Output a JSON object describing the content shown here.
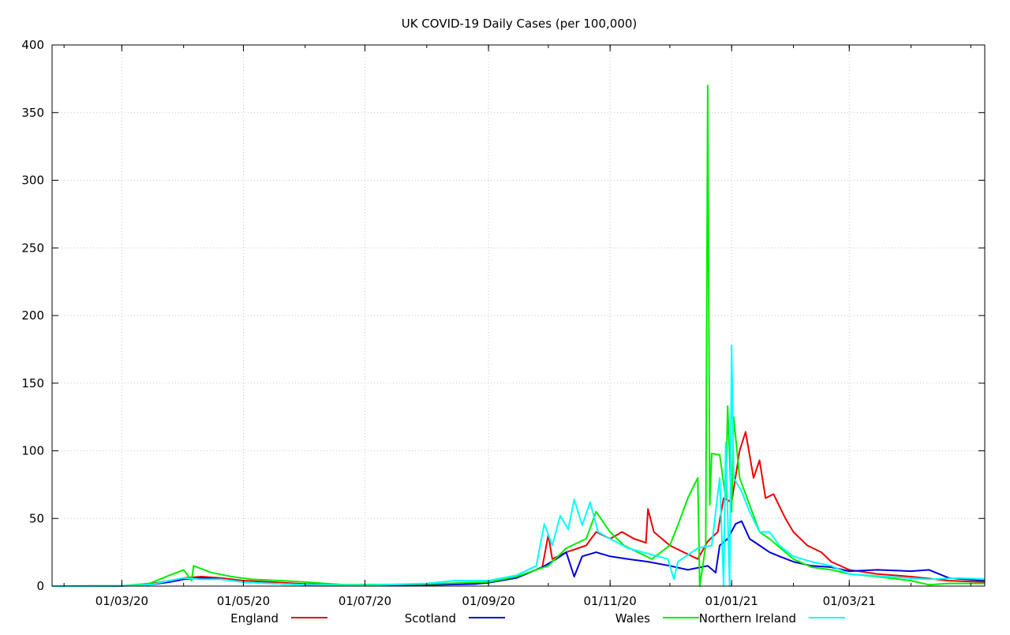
{
  "chart_data": {
    "type": "line",
    "title": "UK COVID-19 Daily Cases (per 100,000)",
    "xlabel": "",
    "ylabel": "",
    "x_date_range": [
      "2020-01-26",
      "2021-05-08"
    ],
    "ylim": [
      0,
      400
    ],
    "y_ticks": [
      0,
      50,
      100,
      150,
      200,
      250,
      300,
      350,
      400
    ],
    "x_ticks": [
      {
        "date": "2020-03-01",
        "label": "01/03/20"
      },
      {
        "date": "2020-05-01",
        "label": "01/05/20"
      },
      {
        "date": "2020-07-01",
        "label": "01/07/20"
      },
      {
        "date": "2020-09-01",
        "label": "01/09/20"
      },
      {
        "date": "2020-11-01",
        "label": "01/11/20"
      },
      {
        "date": "2021-01-01",
        "label": "01/01/21"
      },
      {
        "date": "2021-03-01",
        "label": "01/03/21"
      }
    ],
    "grid": true,
    "legend_position": "bottom",
    "series": [
      {
        "name": "England",
        "color": "#ee0000",
        "points": [
          [
            "2020-01-26",
            0
          ],
          [
            "2020-03-01",
            0.1
          ],
          [
            "2020-03-15",
            1.5
          ],
          [
            "2020-03-25",
            4
          ],
          [
            "2020-04-01",
            6
          ],
          [
            "2020-04-10",
            7
          ],
          [
            "2020-04-20",
            6
          ],
          [
            "2020-05-01",
            4
          ],
          [
            "2020-05-15",
            3
          ],
          [
            "2020-06-01",
            1.5
          ],
          [
            "2020-07-01",
            0.5
          ],
          [
            "2020-08-01",
            1
          ],
          [
            "2020-09-01",
            2.5
          ],
          [
            "2020-09-10",
            5
          ],
          [
            "2020-09-20",
            9
          ],
          [
            "2020-09-28",
            14
          ],
          [
            "2020-10-01",
            38
          ],
          [
            "2020-10-03",
            20
          ],
          [
            "2020-10-10",
            25
          ],
          [
            "2020-10-20",
            30
          ],
          [
            "2020-10-25",
            40
          ],
          [
            "2020-11-01",
            35
          ],
          [
            "2020-11-07",
            40
          ],
          [
            "2020-11-13",
            35
          ],
          [
            "2020-11-19",
            32
          ],
          [
            "2020-11-20",
            57
          ],
          [
            "2020-11-23",
            40
          ],
          [
            "2020-12-01",
            30
          ],
          [
            "2020-12-08",
            25
          ],
          [
            "2020-12-15",
            20
          ],
          [
            "2020-12-20",
            33
          ],
          [
            "2020-12-25",
            40
          ],
          [
            "2020-12-28",
            65
          ],
          [
            "2021-01-01",
            62
          ],
          [
            "2021-01-05",
            100
          ],
          [
            "2021-01-08",
            114
          ],
          [
            "2021-01-12",
            80
          ],
          [
            "2021-01-15",
            93
          ],
          [
            "2021-01-18",
            65
          ],
          [
            "2021-01-22",
            68
          ],
          [
            "2021-01-28",
            50
          ],
          [
            "2021-02-01",
            40
          ],
          [
            "2021-02-08",
            30
          ],
          [
            "2021-02-15",
            25
          ],
          [
            "2021-02-20",
            18
          ],
          [
            "2021-03-01",
            12
          ],
          [
            "2021-03-15",
            9
          ],
          [
            "2021-04-01",
            7
          ],
          [
            "2021-04-20",
            4
          ],
          [
            "2021-05-08",
            3
          ]
        ]
      },
      {
        "name": "Scotland",
        "color": "#0000dd",
        "points": [
          [
            "2020-01-26",
            0
          ],
          [
            "2020-03-01",
            0.1
          ],
          [
            "2020-03-15",
            1
          ],
          [
            "2020-03-25",
            3
          ],
          [
            "2020-04-01",
            5
          ],
          [
            "2020-04-10",
            6
          ],
          [
            "2020-04-20",
            5
          ],
          [
            "2020-05-01",
            3
          ],
          [
            "2020-05-15",
            2
          ],
          [
            "2020-06-01",
            1
          ],
          [
            "2020-07-01",
            0.3
          ],
          [
            "2020-08-01",
            0.8
          ],
          [
            "2020-08-25",
            1.5
          ],
          [
            "2020-09-01",
            2.5
          ],
          [
            "2020-09-15",
            6
          ],
          [
            "2020-09-28",
            14
          ],
          [
            "2020-10-05",
            20
          ],
          [
            "2020-10-10",
            25
          ],
          [
            "2020-10-14",
            7
          ],
          [
            "2020-10-18",
            22
          ],
          [
            "2020-10-25",
            25
          ],
          [
            "2020-11-01",
            22
          ],
          [
            "2020-11-10",
            20
          ],
          [
            "2020-11-20",
            18
          ],
          [
            "2020-12-01",
            15
          ],
          [
            "2020-12-10",
            12
          ],
          [
            "2020-12-20",
            15
          ],
          [
            "2020-12-24",
            10
          ],
          [
            "2020-12-26",
            30
          ],
          [
            "2020-12-30",
            35
          ],
          [
            "2021-01-03",
            46
          ],
          [
            "2021-01-06",
            48
          ],
          [
            "2021-01-10",
            35
          ],
          [
            "2021-01-15",
            30
          ],
          [
            "2021-01-20",
            25
          ],
          [
            "2021-01-25",
            22
          ],
          [
            "2021-02-01",
            18
          ],
          [
            "2021-02-10",
            15
          ],
          [
            "2021-02-20",
            14
          ],
          [
            "2021-03-01",
            11
          ],
          [
            "2021-03-15",
            12
          ],
          [
            "2021-04-01",
            11
          ],
          [
            "2021-04-10",
            12
          ],
          [
            "2021-04-20",
            6
          ],
          [
            "2021-05-08",
            4
          ]
        ]
      },
      {
        "name": "Wales",
        "color": "#00ee00",
        "points": [
          [
            "2020-01-26",
            0
          ],
          [
            "2020-03-01",
            0.1
          ],
          [
            "2020-03-15",
            2
          ],
          [
            "2020-03-25",
            8
          ],
          [
            "2020-04-01",
            12
          ],
          [
            "2020-04-05",
            4
          ],
          [
            "2020-04-06",
            15
          ],
          [
            "2020-04-15",
            10
          ],
          [
            "2020-04-25",
            7
          ],
          [
            "2020-05-05",
            5
          ],
          [
            "2020-05-20",
            4
          ],
          [
            "2020-06-01",
            3
          ],
          [
            "2020-06-20",
            1
          ],
          [
            "2020-07-01",
            1
          ],
          [
            "2020-08-01",
            1.5
          ],
          [
            "2020-09-01",
            3
          ],
          [
            "2020-09-15",
            7
          ],
          [
            "2020-09-25",
            12
          ],
          [
            "2020-10-01",
            15
          ],
          [
            "2020-10-10",
            28
          ],
          [
            "2020-10-20",
            35
          ],
          [
            "2020-10-25",
            55
          ],
          [
            "2020-11-01",
            40
          ],
          [
            "2020-11-08",
            30
          ],
          [
            "2020-11-15",
            25
          ],
          [
            "2020-11-22",
            20
          ],
          [
            "2020-12-01",
            30
          ],
          [
            "2020-12-05",
            45
          ],
          [
            "2020-12-10",
            65
          ],
          [
            "2020-12-15",
            80
          ],
          [
            "2020-12-16",
            0
          ],
          [
            "2020-12-19",
            30
          ],
          [
            "2020-12-20",
            370
          ],
          [
            "2020-12-21",
            60
          ],
          [
            "2020-12-22",
            98
          ],
          [
            "2020-12-26",
            97
          ],
          [
            "2020-12-29",
            65
          ],
          [
            "2020-12-30",
            133
          ],
          [
            "2021-01-01",
            55
          ],
          [
            "2021-01-02",
            125
          ],
          [
            "2021-01-05",
            80
          ],
          [
            "2021-01-10",
            60
          ],
          [
            "2021-01-15",
            40
          ],
          [
            "2021-01-20",
            35
          ],
          [
            "2021-02-01",
            20
          ],
          [
            "2021-02-10",
            14
          ],
          [
            "2021-02-20",
            12
          ],
          [
            "2021-03-01",
            9
          ],
          [
            "2021-03-15",
            7
          ],
          [
            "2021-04-01",
            4
          ],
          [
            "2021-04-10",
            1
          ],
          [
            "2021-04-20",
            2
          ],
          [
            "2021-05-08",
            2
          ]
        ]
      },
      {
        "name": "Northern Ireland",
        "color": "#00ffff",
        "points": [
          [
            "2020-01-26",
            0
          ],
          [
            "2020-03-01",
            0.1
          ],
          [
            "2020-03-15",
            1
          ],
          [
            "2020-03-25",
            4
          ],
          [
            "2020-04-01",
            6
          ],
          [
            "2020-04-10",
            5
          ],
          [
            "2020-04-20",
            5
          ],
          [
            "2020-05-01",
            3
          ],
          [
            "2020-05-15",
            2
          ],
          [
            "2020-06-01",
            1
          ],
          [
            "2020-07-01",
            0.5
          ],
          [
            "2020-08-01",
            2
          ],
          [
            "2020-08-15",
            4
          ],
          [
            "2020-09-01",
            4
          ],
          [
            "2020-09-15",
            8
          ],
          [
            "2020-09-25",
            15
          ],
          [
            "2020-09-29",
            46
          ],
          [
            "2020-10-03",
            30
          ],
          [
            "2020-10-07",
            52
          ],
          [
            "2020-10-11",
            42
          ],
          [
            "2020-10-14",
            64
          ],
          [
            "2020-10-18",
            45
          ],
          [
            "2020-10-22",
            62
          ],
          [
            "2020-10-26",
            40
          ],
          [
            "2020-11-01",
            35
          ],
          [
            "2020-11-10",
            28
          ],
          [
            "2020-11-20",
            24
          ],
          [
            "2020-11-30",
            20
          ],
          [
            "2020-12-03",
            5
          ],
          [
            "2020-12-05",
            18
          ],
          [
            "2020-12-15",
            28
          ],
          [
            "2020-12-22",
            30
          ],
          [
            "2020-12-26",
            80
          ],
          [
            "2020-12-28",
            0
          ],
          [
            "2020-12-29",
            106
          ],
          [
            "2020-12-31",
            0
          ],
          [
            "2021-01-01",
            178
          ],
          [
            "2021-01-02",
            80
          ],
          [
            "2021-01-06",
            70
          ],
          [
            "2021-01-10",
            55
          ],
          [
            "2021-01-15",
            40
          ],
          [
            "2021-01-20",
            40
          ],
          [
            "2021-01-25",
            30
          ],
          [
            "2021-02-01",
            22
          ],
          [
            "2021-02-10",
            18
          ],
          [
            "2021-02-20",
            15
          ],
          [
            "2021-03-01",
            9
          ],
          [
            "2021-03-20",
            7
          ],
          [
            "2021-04-10",
            5
          ],
          [
            "2021-04-25",
            6
          ],
          [
            "2021-05-08",
            5
          ]
        ]
      }
    ]
  }
}
